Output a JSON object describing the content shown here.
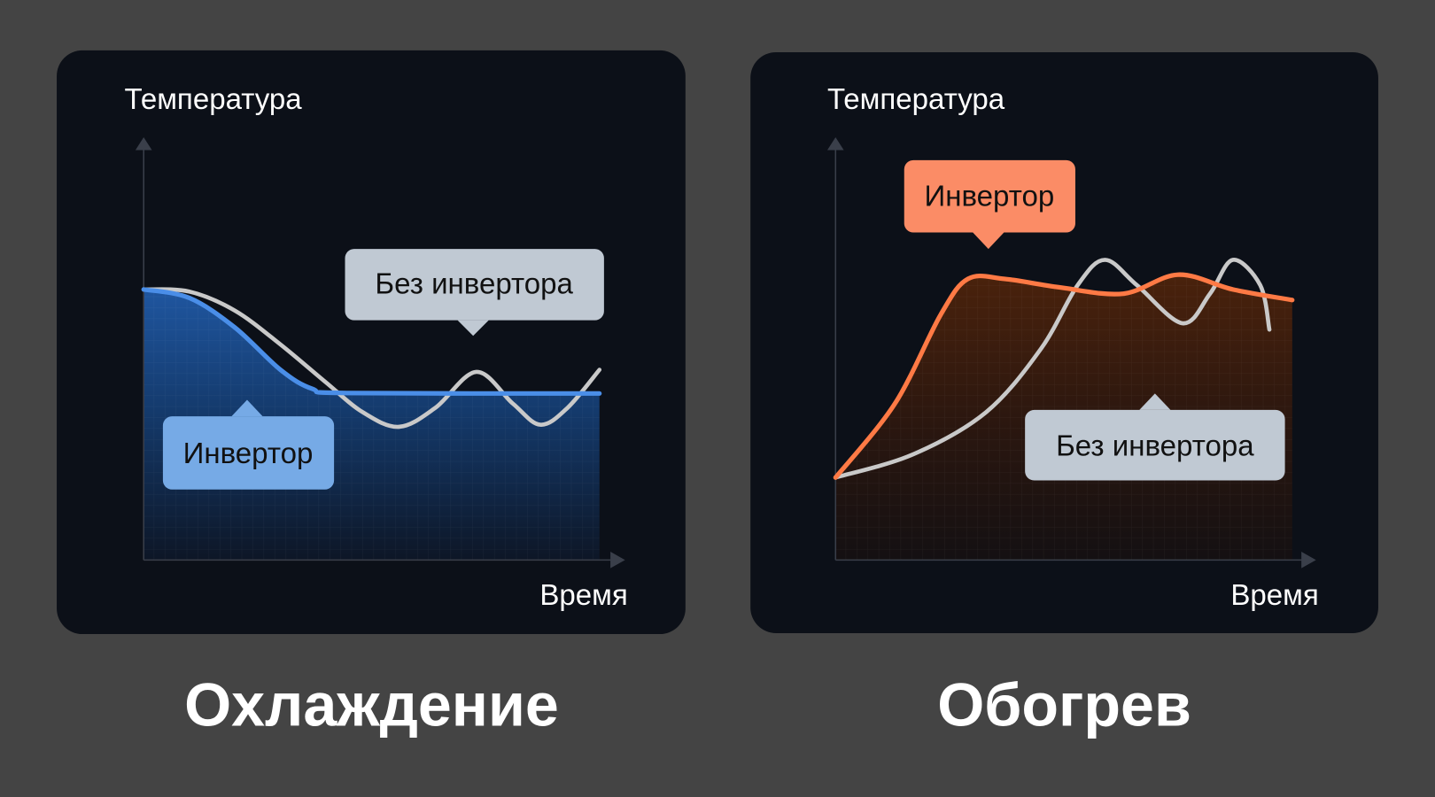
{
  "chart_data": [
    {
      "type": "area",
      "title": "Охлаждение",
      "xlabel": "Время",
      "ylabel": "Температура",
      "xlim": [
        0,
        100
      ],
      "ylim": [
        0,
        100
      ],
      "grid": false,
      "accent_color": "#4a8ee8",
      "series": [
        {
          "name": "Инвертор",
          "color": "#4a8ee8",
          "filled": true,
          "x": [
            0,
            10,
            20,
            30,
            37,
            45,
            100
          ],
          "y": [
            64,
            62,
            55,
            45,
            40.5,
            39.5,
            39.4
          ]
        },
        {
          "name": "Без инвертора",
          "color": "#c9c9c9",
          "filled": false,
          "x": [
            0,
            10,
            20,
            30,
            40,
            48,
            56,
            64,
            73,
            81,
            87,
            93,
            100
          ],
          "y": [
            64,
            63.5,
            59,
            51,
            42,
            35,
            31.5,
            36,
            44.5,
            37,
            32,
            36,
            45
          ]
        }
      ],
      "labels": [
        {
          "text": "Без инвертора",
          "color": "#c0c9d3"
        },
        {
          "text": "Инвертор",
          "color": "#76aae6"
        }
      ]
    },
    {
      "type": "area",
      "title": "Обогрев",
      "xlabel": "Время",
      "ylabel": "Температура",
      "xlim": [
        0,
        100
      ],
      "ylim": [
        0,
        100
      ],
      "grid": false,
      "accent_color": "#ff7a45",
      "series": [
        {
          "name": "Инвертор",
          "color": "#ff7a45",
          "filled": true,
          "x": [
            0,
            13,
            23,
            29,
            37,
            49,
            63,
            75,
            87,
            100
          ],
          "y": [
            19.5,
            37,
            58,
            66.5,
            66.5,
            64.5,
            63,
            67.5,
            64,
            61.5
          ]
        },
        {
          "name": "Без инвертора",
          "color": "#c9c9c9",
          "filled": false,
          "x": [
            0,
            17,
            33,
            45,
            53,
            59,
            66,
            76,
            82,
            87,
            93,
            95
          ],
          "y": [
            19.5,
            25,
            35,
            50,
            65,
            71,
            65,
            56,
            63,
            71,
            65,
            54.5
          ]
        }
      ],
      "labels": [
        {
          "text": "Инвертор",
          "color": "#fb8c66"
        },
        {
          "text": "Без инвертора",
          "color": "#c0c9d3"
        }
      ]
    }
  ]
}
